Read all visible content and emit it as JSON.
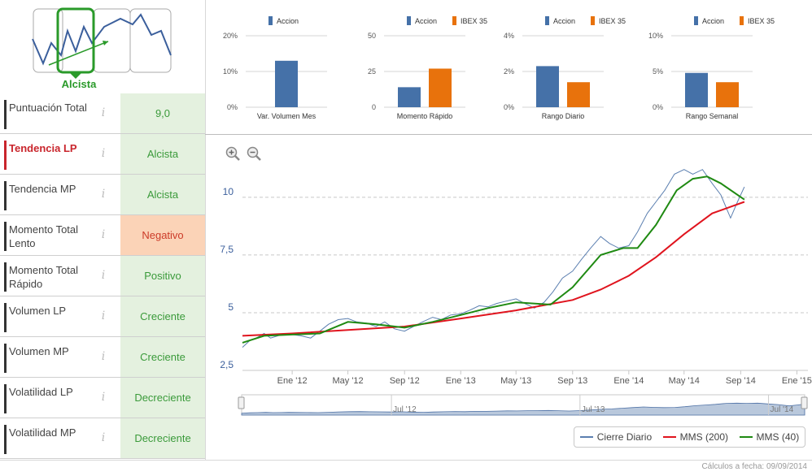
{
  "logo": {
    "label": "Alcista"
  },
  "indicators": [
    {
      "label": "Puntuación Total",
      "value": "9,0",
      "status": "positive",
      "highlight": false
    },
    {
      "label": "Tendencia LP",
      "value": "Alcista",
      "status": "positive",
      "highlight": true
    },
    {
      "label": "Tendencia MP",
      "value": "Alcista",
      "status": "positive",
      "highlight": false
    },
    {
      "label": "Momento Total Lento",
      "value": "Negativo",
      "status": "negative",
      "highlight": false
    },
    {
      "label": "Momento Total Rápido",
      "value": "Positivo",
      "status": "positive",
      "highlight": false
    },
    {
      "label": "Volumen LP",
      "value": "Creciente",
      "status": "positive",
      "highlight": false
    },
    {
      "label": "Volumen MP",
      "value": "Creciente",
      "status": "positive",
      "highlight": false
    },
    {
      "label": "Volatilidad LP",
      "value": "Decreciente",
      "status": "positive",
      "highlight": false
    },
    {
      "label": "Volatilidad MP",
      "value": "Decreciente",
      "status": "positive",
      "highlight": false
    }
  ],
  "colors": {
    "accion": "#4571a8",
    "ibex": "#e8720c",
    "mms200": "#e0141e",
    "mms40": "#1f8a12",
    "daily": "#5b7fb0",
    "positive_bg": "#e4f1df",
    "negative_bg": "#fbd3b7"
  },
  "zoom_in_icon": "zoom-in-icon",
  "zoom_out_icon": "zoom-out-icon",
  "info_icon_glyph": "i",
  "chart_data": [
    {
      "type": "bar",
      "xlabel": "Var. Volumen Mes",
      "categories": [
        "Var. Volumen Mes"
      ],
      "series": [
        {
          "name": "Accion",
          "values": [
            13
          ]
        }
      ],
      "yticks": [
        "20%",
        "10%",
        "0%"
      ],
      "ylim": [
        0,
        20
      ]
    },
    {
      "type": "bar",
      "xlabel": "Momento Rápido",
      "categories": [
        "Momento Rápido"
      ],
      "series": [
        {
          "name": "Accion",
          "values": [
            14
          ]
        },
        {
          "name": "IBEX 35",
          "values": [
            27
          ]
        }
      ],
      "yticks": [
        "50",
        "25",
        "0"
      ],
      "ylim": [
        0,
        50
      ]
    },
    {
      "type": "bar",
      "xlabel": "Rango Diario",
      "categories": [
        "Rango Diario"
      ],
      "series": [
        {
          "name": "Accion",
          "values": [
            2.3
          ]
        },
        {
          "name": "IBEX 35",
          "values": [
            1.4
          ]
        }
      ],
      "yticks": [
        "4%",
        "2%",
        "0%"
      ],
      "ylim": [
        0,
        4
      ]
    },
    {
      "type": "bar",
      "xlabel": "Rango Semanal",
      "categories": [
        "Rango Semanal"
      ],
      "series": [
        {
          "name": "Accion",
          "values": [
            4.8
          ]
        },
        {
          "name": "IBEX 35",
          "values": [
            3.5
          ]
        }
      ],
      "yticks": [
        "10%",
        "5%",
        "0%"
      ],
      "ylim": [
        0,
        10
      ]
    },
    {
      "type": "line",
      "yticks": [
        "10",
        "7,5",
        "5",
        "2,5"
      ],
      "ytick_values": [
        10,
        7.5,
        5,
        2.5
      ],
      "ylim": [
        2.5,
        12
      ],
      "xticks": [
        "Ene '12",
        "May '12",
        "Sep '12",
        "Ene '13",
        "May '13",
        "Sep '13",
        "Ene '14",
        "May '14",
        "Sep '14",
        "Ene '15"
      ],
      "xtick_dates": [
        "2012-01-01",
        "2012-05-01",
        "2012-09-01",
        "2013-01-01",
        "2013-05-01",
        "2013-09-01",
        "2014-01-01",
        "2014-05-01",
        "2014-09-01",
        "2015-01-01"
      ],
      "xlim": [
        "2011-09-15",
        "2015-01-25"
      ],
      "navigator_labels": [
        "Jul '12",
        "Jul '13",
        "Jul '14"
      ],
      "navigator_dates": [
        "2012-07-01",
        "2013-07-01",
        "2014-07-01"
      ],
      "series": [
        {
          "name": "Cierre Diario",
          "points": [
            [
              "2011-09-15",
              3.5
            ],
            [
              "2011-10-01",
              3.8
            ],
            [
              "2011-10-15",
              3.9
            ],
            [
              "2011-11-01",
              4.1
            ],
            [
              "2011-11-15",
              3.9
            ],
            [
              "2011-12-01",
              4.0
            ],
            [
              "2011-12-15",
              4.1
            ],
            [
              "2012-01-01",
              4.05
            ],
            [
              "2012-01-20",
              4.0
            ],
            [
              "2012-02-10",
              3.9
            ],
            [
              "2012-03-01",
              4.2
            ],
            [
              "2012-03-20",
              4.5
            ],
            [
              "2012-04-10",
              4.7
            ],
            [
              "2012-05-01",
              4.75
            ],
            [
              "2012-05-20",
              4.6
            ],
            [
              "2012-06-10",
              4.55
            ],
            [
              "2012-07-01",
              4.4
            ],
            [
              "2012-07-20",
              4.6
            ],
            [
              "2012-08-10",
              4.3
            ],
            [
              "2012-09-01",
              4.2
            ],
            [
              "2012-09-20",
              4.4
            ],
            [
              "2012-10-10",
              4.6
            ],
            [
              "2012-11-01",
              4.8
            ],
            [
              "2012-11-20",
              4.7
            ],
            [
              "2012-12-10",
              4.9
            ],
            [
              "2013-01-01",
              4.95
            ],
            [
              "2013-01-20",
              5.1
            ],
            [
              "2013-02-10",
              5.3
            ],
            [
              "2013-03-01",
              5.25
            ],
            [
              "2013-03-20",
              5.4
            ],
            [
              "2013-04-10",
              5.5
            ],
            [
              "2013-05-01",
              5.6
            ],
            [
              "2013-05-20",
              5.4
            ],
            [
              "2013-06-10",
              5.2
            ],
            [
              "2013-07-01",
              5.45
            ],
            [
              "2013-07-20",
              5.9
            ],
            [
              "2013-08-10",
              6.5
            ],
            [
              "2013-09-01",
              6.8
            ],
            [
              "2013-09-20",
              7.3
            ],
            [
              "2013-10-10",
              7.8
            ],
            [
              "2013-11-01",
              8.3
            ],
            [
              "2013-11-20",
              8.0
            ],
            [
              "2013-12-10",
              7.8
            ],
            [
              "2014-01-01",
              7.9
            ],
            [
              "2014-01-20",
              8.5
            ],
            [
              "2014-02-10",
              9.3
            ],
            [
              "2014-03-01",
              9.8
            ],
            [
              "2014-03-20",
              10.3
            ],
            [
              "2014-04-10",
              11.0
            ],
            [
              "2014-05-01",
              11.2
            ],
            [
              "2014-05-20",
              11.0
            ],
            [
              "2014-06-10",
              11.2
            ],
            [
              "2014-07-01",
              10.6
            ],
            [
              "2014-07-20",
              10.1
            ],
            [
              "2014-08-10",
              9.1
            ],
            [
              "2014-08-25",
              9.8
            ],
            [
              "2014-09-09",
              10.45
            ]
          ]
        },
        {
          "name": "MMS (200)",
          "points": [
            [
              "2011-09-15",
              4.0
            ],
            [
              "2012-01-01",
              4.1
            ],
            [
              "2012-05-01",
              4.25
            ],
            [
              "2012-09-01",
              4.4
            ],
            [
              "2013-01-01",
              4.75
            ],
            [
              "2013-05-01",
              5.1
            ],
            [
              "2013-09-01",
              5.55
            ],
            [
              "2013-11-01",
              6.0
            ],
            [
              "2014-01-01",
              6.6
            ],
            [
              "2014-03-01",
              7.4
            ],
            [
              "2014-05-01",
              8.4
            ],
            [
              "2014-07-01",
              9.3
            ],
            [
              "2014-09-09",
              9.8
            ]
          ]
        },
        {
          "name": "MMS (40)",
          "points": [
            [
              "2011-09-15",
              3.7
            ],
            [
              "2011-11-01",
              4.0
            ],
            [
              "2012-01-01",
              4.05
            ],
            [
              "2012-03-01",
              4.1
            ],
            [
              "2012-05-01",
              4.6
            ],
            [
              "2012-07-01",
              4.5
            ],
            [
              "2012-09-01",
              4.35
            ],
            [
              "2012-11-01",
              4.6
            ],
            [
              "2013-01-01",
              4.9
            ],
            [
              "2013-03-01",
              5.2
            ],
            [
              "2013-05-01",
              5.45
            ],
            [
              "2013-07-15",
              5.35
            ],
            [
              "2013-09-01",
              6.1
            ],
            [
              "2013-11-01",
              7.5
            ],
            [
              "2013-12-20",
              7.8
            ],
            [
              "2014-01-20",
              7.8
            ],
            [
              "2014-03-01",
              8.8
            ],
            [
              "2014-04-15",
              10.3
            ],
            [
              "2014-05-20",
              10.8
            ],
            [
              "2014-06-20",
              10.9
            ],
            [
              "2014-07-20",
              10.6
            ],
            [
              "2014-09-09",
              9.9
            ]
          ]
        }
      ]
    }
  ]
}
